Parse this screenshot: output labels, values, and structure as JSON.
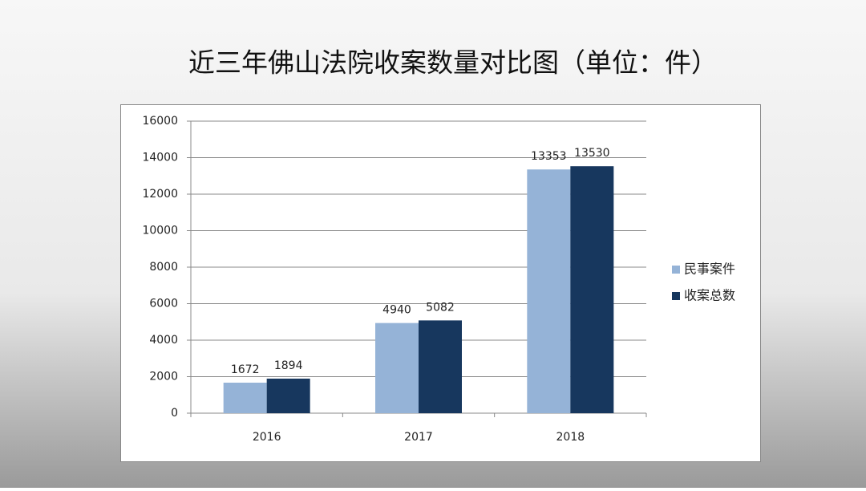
{
  "chart_data": {
    "type": "bar",
    "title": "近三年佛山法院收案数量对比图（单位：件）",
    "categories": [
      "2016",
      "2017",
      "2018"
    ],
    "series": [
      {
        "name": "民事案件",
        "color": "#95b3d7",
        "values": [
          1672,
          4940,
          13353
        ]
      },
      {
        "name": "收案总数",
        "color": "#17375e",
        "values": [
          1894,
          5082,
          13530
        ]
      }
    ],
    "ylim": [
      0,
      16000
    ],
    "yticks": [
      0,
      2000,
      4000,
      6000,
      8000,
      10000,
      12000,
      14000,
      16000
    ],
    "grid": true,
    "legend": "right"
  }
}
